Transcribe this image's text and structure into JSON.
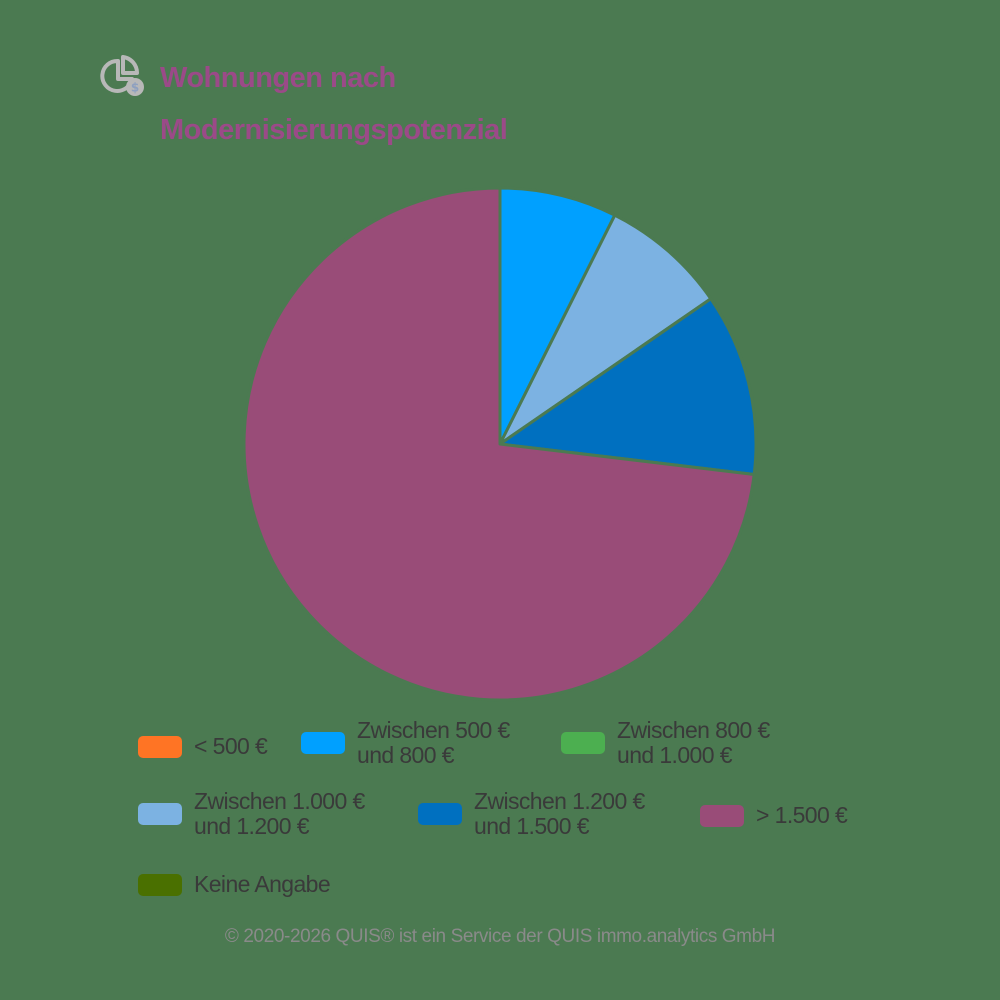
{
  "title": {
    "line1": "Wohnungen nach",
    "line2": "Modernisierungspotenzial",
    "icon": "pie-chart-money-icon",
    "color": "#9b4a88"
  },
  "background_color": "#4b7a51",
  "legend": {
    "items": [
      {
        "line1": "< 500 €",
        "line2": "",
        "color": "#ff7424"
      },
      {
        "line1": "Zwischen 500 €",
        "line2": "und 800 €",
        "color": "#00a0ff"
      },
      {
        "line1": "Zwischen 800 €",
        "line2": "und 1.000 €",
        "color": "#4caf50"
      },
      {
        "line1": "Zwischen 1.000 €",
        "line2": "und 1.200 €",
        "color": "#7cb2e2"
      },
      {
        "line1": "Zwischen 1.200 €",
        "line2": "und 1.500 €",
        "color": "#0070c0"
      },
      {
        "line1": "> 1.500 €",
        "line2": "",
        "color": "#994c78"
      },
      {
        "line1": "Keine Angabe",
        "line2": "",
        "color": "#4a7000"
      }
    ]
  },
  "footer": "© 2020-2026 QUIS® ist ein Service der QUIS immo.analytics GmbH",
  "chart_data": {
    "type": "pie",
    "title": "Wohnungen nach Modernisierungspotenzial",
    "categories": [
      "< 500 €",
      "Zwischen 500 € und 800 €",
      "Zwischen 800 € und 1.000 €",
      "Zwischen 1.000 € und 1.200 €",
      "Zwischen 1.200 € und 1.500 €",
      "> 1.500 €",
      "Keine Angabe"
    ],
    "values": [
      0,
      7.4,
      0,
      8.0,
      11.5,
      73.1,
      0
    ],
    "unit": "%",
    "colors": [
      "#ff7424",
      "#00a0ff",
      "#4caf50",
      "#7cb2e2",
      "#0070c0",
      "#994c78",
      "#4a7000"
    ],
    "start_angle": "12 o'clock, clockwise",
    "legend_position": "bottom",
    "center": [
      500,
      444
    ],
    "radius": 256
  }
}
